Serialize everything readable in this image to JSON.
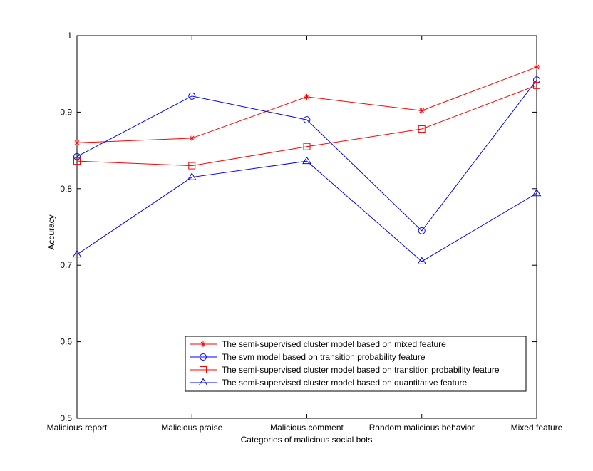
{
  "chart_data": {
    "type": "line",
    "title": "",
    "xlabel": "Categories of malicious social bots",
    "ylabel": "Accuracy",
    "categories": [
      "Malicious report",
      "Malicious praise",
      "Malicious comment",
      "Random malicious behavior",
      "Mixed feature"
    ],
    "ylim": [
      0.5,
      1.0
    ],
    "yticks": [
      "0.5",
      "0.6",
      "0.7",
      "0.8",
      "0.9",
      "1"
    ],
    "grid": false,
    "legend_position": "bottom-right",
    "series": [
      {
        "name": "The semi-supervised cluster model based on mixed feature",
        "color": "#ff0000",
        "marker": "star",
        "values": [
          0.86,
          0.866,
          0.92,
          0.902,
          0.959
        ]
      },
      {
        "name": "The svm model based on transition probability feature",
        "color": "#0000ff",
        "marker": "circle",
        "values": [
          0.842,
          0.921,
          0.89,
          0.745,
          0.942
        ]
      },
      {
        "name": "The semi-supervised cluster model based on transition probability feature",
        "color": "#ff0000",
        "marker": "square",
        "values": [
          0.836,
          0.83,
          0.855,
          0.878,
          0.935
        ]
      },
      {
        "name": "The semi-supervised cluster model based on quantitative feature",
        "color": "#0000ff",
        "marker": "triangle",
        "values": [
          0.714,
          0.815,
          0.836,
          0.705,
          0.794
        ]
      }
    ]
  }
}
